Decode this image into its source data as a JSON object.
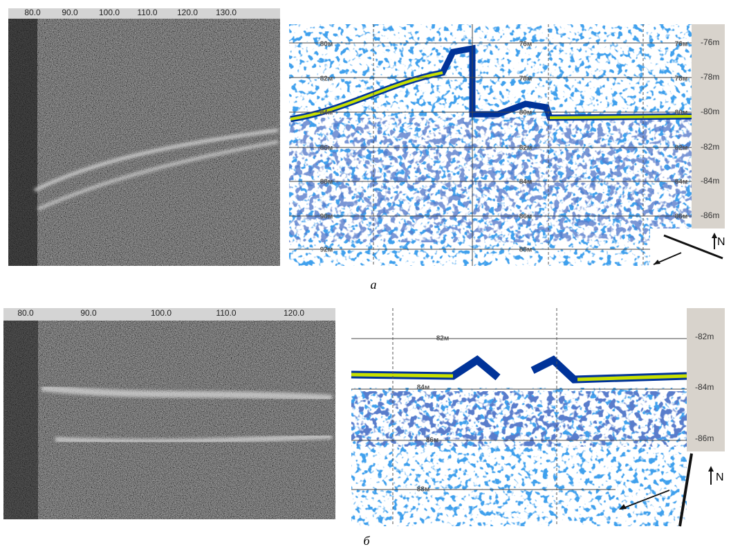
{
  "panel_a": {
    "ruler_labels": [
      "80.0",
      "90.0",
      "100.0",
      "110.0",
      "120.0",
      "130.0"
    ],
    "grid_labels": [
      "80м",
      "82м",
      "84м",
      "86м",
      "88м",
      "90м",
      "92м",
      "76м",
      "78м",
      "80м",
      "82м",
      "84м",
      "86м",
      "88м",
      "76м",
      "78м",
      "80м",
      "82м",
      "84м",
      "86м"
    ],
    "depth_scale": [
      "-76m",
      "-78m",
      "-80m",
      "-82m",
      "-84m",
      "-86m"
    ],
    "north": "N",
    "caption": "а"
  },
  "panel_b": {
    "ruler_labels": [
      "80.0",
      "90.0",
      "100.0",
      "110.0",
      "120.0"
    ],
    "grid_labels": [
      "82м",
      "84м",
      "86м",
      "88м"
    ],
    "depth_scale": [
      "-82m",
      "-84m",
      "-86m"
    ],
    "north": "N",
    "caption": "б"
  }
}
